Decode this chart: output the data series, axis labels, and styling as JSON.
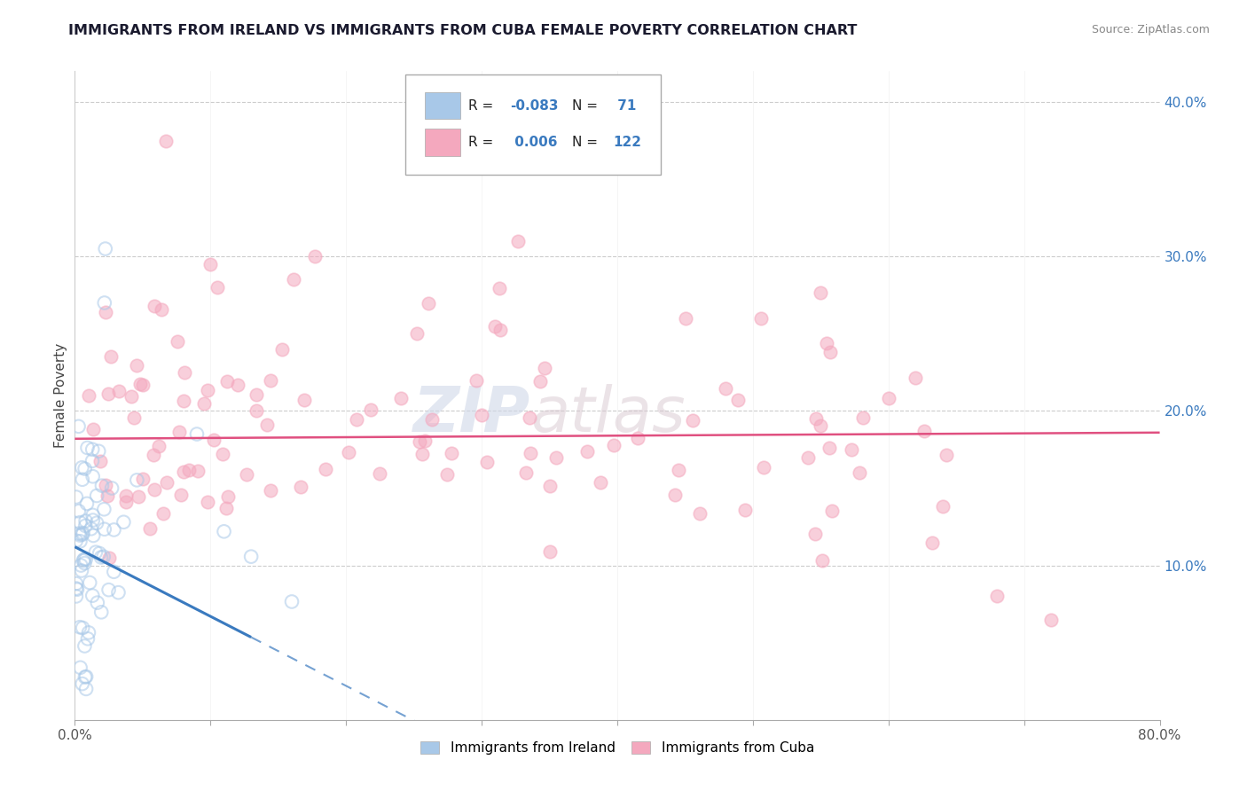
{
  "title": "IMMIGRANTS FROM IRELAND VS IMMIGRANTS FROM CUBA FEMALE POVERTY CORRELATION CHART",
  "source": "Source: ZipAtlas.com",
  "ylabel": "Female Poverty",
  "xlim": [
    0.0,
    0.8
  ],
  "ylim": [
    0.0,
    0.42
  ],
  "ireland_color": "#a8c8e8",
  "cuba_color": "#f4a8be",
  "ireland_R": -0.083,
  "ireland_N": 71,
  "cuba_R": 0.006,
  "cuba_N": 122,
  "ireland_line_color": "#3a7abf",
  "cuba_line_color": "#e05080",
  "r_n_color": "#3a7abf",
  "legend_label_ireland": "Immigrants from Ireland",
  "legend_label_cuba": "Immigrants from Cuba"
}
